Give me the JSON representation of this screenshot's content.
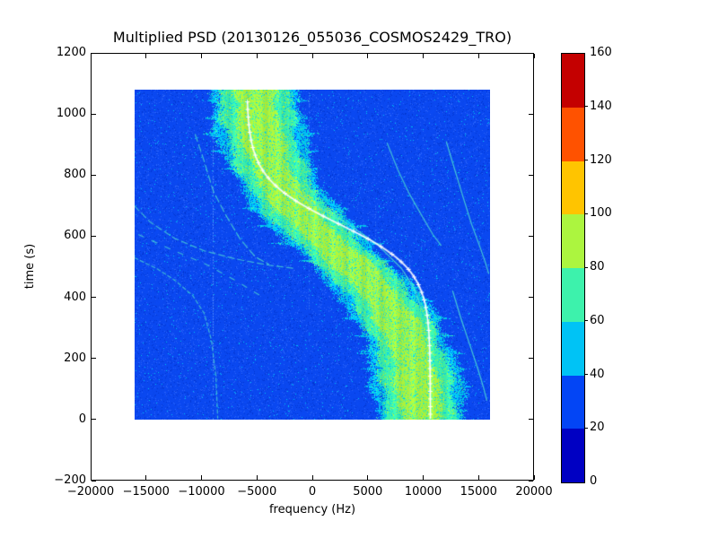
{
  "chart_data": {
    "type": "heatmap",
    "title": "Multiplied PSD (20130126_055036_COSMOS2429_TRO)",
    "xlabel": "frequency (Hz)",
    "ylabel": "time (s)",
    "xlim": [
      -20000,
      20000
    ],
    "ylim": [
      -200,
      1200
    ],
    "xticks": [
      -20000,
      -15000,
      -10000,
      -5000,
      0,
      5000,
      10000,
      15000,
      20000
    ],
    "xtick_labels": [
      "−20000",
      "−15000",
      "−10000",
      "−5000",
      "0",
      "5000",
      "10000",
      "15000",
      "20000"
    ],
    "yticks": [
      -200,
      0,
      200,
      400,
      600,
      800,
      1000,
      1200
    ],
    "ytick_labels": [
      "−200",
      "0",
      "200",
      "400",
      "600",
      "800",
      "1000",
      "1200"
    ],
    "grid": false,
    "data_extent": {
      "freq_hz": [
        -16000,
        16000
      ],
      "time_s": [
        0,
        1080
      ]
    },
    "colorbar": {
      "min": 0,
      "max": 160,
      "ticks": [
        0,
        20,
        40,
        60,
        80,
        100,
        120,
        140,
        160
      ],
      "tick_labels": [
        "0",
        "20",
        "40",
        "60",
        "80",
        "100",
        "120",
        "140",
        "160"
      ],
      "colors_bottom_to_top": [
        "#0000c3",
        "#0345f5",
        "#00c3f5",
        "#3df2ac",
        "#acf53f",
        "#ffc400",
        "#ff5200",
        "#c40000"
      ]
    },
    "background_psd_level": 28,
    "doppler_band": {
      "description": "broad S-shaped Doppler band of the satellite pass",
      "center_model": {
        "offset_hz": 2300,
        "amplitude_hz": 7800,
        "t_mid_s": 550,
        "tau_s": 270
      },
      "half_widths_hz": {
        "core": 1750,
        "inner": 2950,
        "outer": 3700
      },
      "zone_levels": {
        "core": [
          80,
          100
        ],
        "inner": [
          60,
          80
        ],
        "outer": [
          40,
          60
        ]
      }
    },
    "white_track": {
      "description": "predicted Doppler track plotted with + markers",
      "center_model": {
        "offset_hz": 2400,
        "amplitude_hz": 8300,
        "t_mid_s": 640,
        "tau_s": 150
      },
      "t_range_s": [
        0,
        1040
      ],
      "marker": "+",
      "marker_step_s": 25
    },
    "traces": [
      {
        "name": "trace-upper-left",
        "dash": [
          8,
          4
        ],
        "alpha": 0.75,
        "points_t_f": [
          [
            933,
            -10530
          ],
          [
            845,
            -9720
          ],
          [
            748,
            -8910
          ],
          [
            669,
            -7780
          ],
          [
            590,
            -6480
          ],
          [
            531,
            -5100
          ],
          [
            507,
            -3890
          ]
        ]
      },
      {
        "name": "trace-mid-left",
        "dash": [
          7,
          4
        ],
        "alpha": 0.7,
        "points_t_f": [
          [
            698,
            -16000
          ],
          [
            645,
            -14580
          ],
          [
            592,
            -12390
          ],
          [
            551,
            -9720
          ],
          [
            525,
            -6960
          ],
          [
            504,
            -3890
          ],
          [
            493,
            -1460
          ]
        ]
      },
      {
        "name": "trace-crossing",
        "dash": [],
        "alpha": 0.8,
        "points_t_f": [
          [
            763,
            -2110
          ],
          [
            704,
            160
          ],
          [
            645,
            2990
          ],
          [
            575,
            5830
          ],
          [
            493,
            8100
          ],
          [
            428,
            9230
          ],
          [
            361,
            9880
          ]
        ]
      },
      {
        "name": "trace-lower-left",
        "dash": [
          4,
          3
        ],
        "alpha": 0.7,
        "points_t_f": [
          [
            528,
            -16000
          ],
          [
            493,
            -14010
          ],
          [
            455,
            -12390
          ],
          [
            405,
            -10770
          ],
          [
            346,
            -9720
          ],
          [
            258,
            -9070
          ],
          [
            140,
            -8660
          ],
          [
            2,
            -8500
          ]
        ]
      },
      {
        "name": "arc-right-a",
        "dash": [],
        "alpha": 0.75,
        "points_t_f": [
          [
            904,
            6800
          ],
          [
            816,
            7770
          ],
          [
            742,
            8740
          ],
          [
            669,
            9880
          ],
          [
            604,
            10930
          ],
          [
            569,
            11660
          ]
        ]
      },
      {
        "name": "arc-right-b",
        "dash": [],
        "alpha": 0.8,
        "points_t_f": [
          [
            909,
            12140
          ],
          [
            830,
            12790
          ],
          [
            733,
            13600
          ],
          [
            639,
            14410
          ],
          [
            575,
            15060
          ],
          [
            516,
            15630
          ],
          [
            478,
            15950
          ]
        ]
      },
      {
        "name": "arc-right-c",
        "dash": [],
        "alpha": 0.8,
        "points_t_f": [
          [
            419,
            12710
          ],
          [
            331,
            13440
          ],
          [
            243,
            14250
          ],
          [
            164,
            14980
          ],
          [
            105,
            15470
          ],
          [
            61,
            15790
          ]
        ]
      },
      {
        "name": "dashed-trace",
        "dash": [
          6,
          10
        ],
        "alpha": 0.7,
        "points_t_f": [
          [
            604,
            -15630
          ],
          [
            557,
            -12790
          ],
          [
            507,
            -9560
          ],
          [
            455,
            -6960
          ],
          [
            405,
            -4700
          ]
        ]
      }
    ],
    "vertical_streaks": [
      {
        "f_hz": -8990,
        "t0": 0,
        "t1": 1080,
        "alpha": 0.5
      },
      {
        "f_hz": -245,
        "t0": 350,
        "t1": 1080,
        "alpha": 0.3
      },
      {
        "f_hz": 5750,
        "t0": 300,
        "t1": 700,
        "alpha": 0.28
      },
      {
        "f_hz": 8820,
        "t0": 0,
        "t1": 550,
        "alpha": 0.3
      }
    ]
  },
  "palette": {
    "background": "#0a48f0",
    "background_light": "#2a64fa",
    "background_dark": "#0236d2",
    "speckle_cyan": "#00c3f0",
    "band_outer": "#00c8f5",
    "band_inner": "#3df2ac",
    "band_core": "#aff53c",
    "trace": "#54e6cf",
    "white_track": "#ffffff",
    "axis": "#000000"
  }
}
